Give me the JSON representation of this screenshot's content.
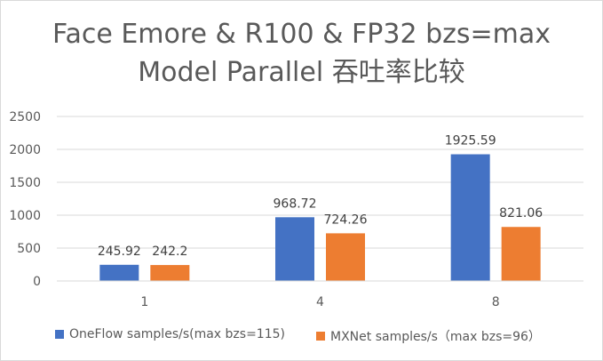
{
  "chart_data": {
    "type": "bar",
    "title_line1": "Face Emore & R100 & FP32 bzs=max",
    "title_line2": "Model Parallel 吞吐率比较",
    "categories": [
      "1",
      "4",
      "8"
    ],
    "series": [
      {
        "name": "OneFlow samples/s(max bzs=115)",
        "values": [
          245.92,
          968.72,
          1925.59
        ],
        "color": "#4472c4"
      },
      {
        "name": "MXNet samples/s（max bzs=96）",
        "values": [
          242.2,
          724.26,
          821.06
        ],
        "color": "#ed7d31"
      }
    ],
    "ylim": [
      0,
      2500
    ],
    "yticks": [
      0,
      500,
      1000,
      1500,
      2000,
      2500
    ],
    "grid": true,
    "legend_position": "bottom",
    "data_labels": true
  }
}
